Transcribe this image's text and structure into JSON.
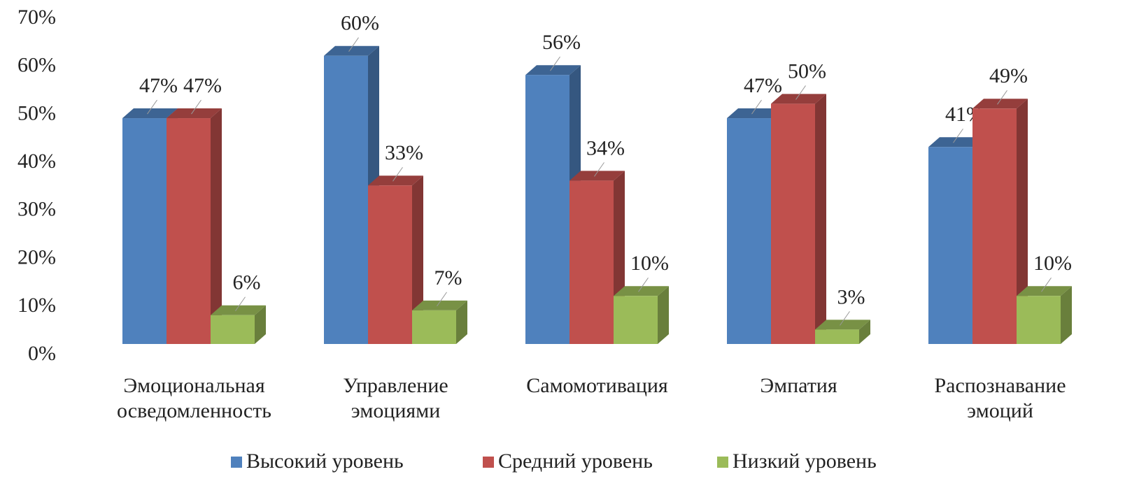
{
  "chart_data": {
    "type": "bar3d",
    "categories": [
      "Эмоциональная осведомленность",
      "Управление эмоциями",
      "Самомотивация",
      "Эмпатия",
      "Распознавание эмоций"
    ],
    "series": [
      {
        "name": "Высокий уровень",
        "color": "#4f81bd",
        "values": [
          47,
          60,
          56,
          47,
          41
        ],
        "value_labels": [
          "47%",
          "60%",
          "56%",
          "47%",
          "41%"
        ]
      },
      {
        "name": "Средний уровень",
        "color": "#c0504d",
        "values": [
          47,
          33,
          34,
          50,
          49
        ],
        "value_labels": [
          "47%",
          "33%",
          "34%",
          "50%",
          "49%"
        ]
      },
      {
        "name": "Низкий уровень",
        "color": "#9bbb59",
        "values": [
          6,
          7,
          10,
          3,
          10
        ],
        "value_labels": [
          "6%",
          "7%",
          "10%",
          "3%",
          "10%"
        ]
      }
    ],
    "ylim": [
      0,
      70
    ],
    "yticks": [
      {
        "value": 0,
        "label": "0%"
      },
      {
        "value": 10,
        "label": "10%"
      },
      {
        "value": 20,
        "label": "20%"
      },
      {
        "value": 30,
        "label": "30%"
      },
      {
        "value": 40,
        "label": "40%"
      },
      {
        "value": 50,
        "label": "50%"
      },
      {
        "value": 60,
        "label": "60%"
      },
      {
        "value": 70,
        "label": "70%"
      }
    ],
    "legend": "bottom"
  }
}
